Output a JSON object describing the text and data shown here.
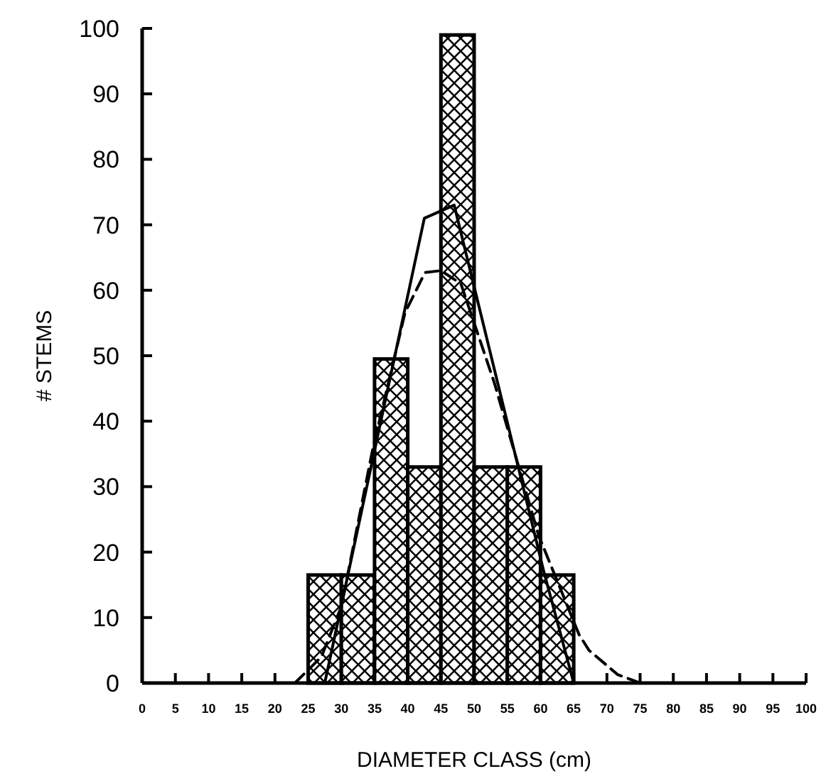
{
  "chart_data": {
    "type": "histogram",
    "xlabel": "DIAMETER CLASS (cm)",
    "ylabel": "# STEMS",
    "bins": [
      25,
      30,
      35,
      40,
      45,
      50,
      55,
      60,
      65
    ],
    "values": [
      16.5,
      16.5,
      49.5,
      33,
      99,
      33,
      33,
      16.5
    ],
    "color": "#000000",
    "series": [
      {
        "type": "line",
        "color": "#000000",
        "line_style": "solid",
        "x": [
          27.5,
          42.5,
          47,
          60.5,
          65
        ],
        "values": [
          0,
          71,
          73,
          17,
          0
        ]
      },
      {
        "type": "line",
        "color": "#000000",
        "line_style": "dashed",
        "x": [
          23,
          27,
          30,
          34.7,
          39.6,
          42.6,
          45,
          48,
          53,
          59.7,
          65.8,
          67.3,
          71.6,
          75
        ],
        "values": [
          0,
          4,
          11.7,
          35.6,
          56.6,
          62.7,
          63,
          61,
          46,
          22.6,
          7.4,
          5,
          1.3,
          0
        ]
      }
    ],
    "xlim": [
      0,
      100
    ],
    "xticks": [
      0,
      5,
      10,
      15,
      20,
      25,
      30,
      35,
      40,
      45,
      50,
      55,
      60,
      65,
      70,
      75,
      80,
      85,
      90,
      95,
      100
    ],
    "ylim": [
      0,
      100
    ],
    "yticks": [
      0,
      10,
      20,
      30,
      40,
      50,
      60,
      70,
      80,
      90,
      100
    ],
    "grid": false
  }
}
